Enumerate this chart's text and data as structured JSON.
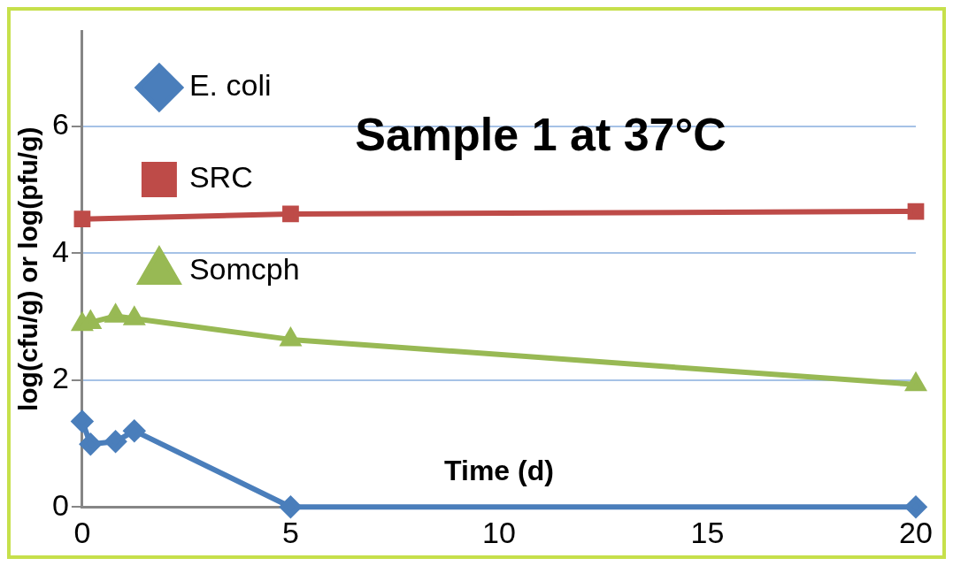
{
  "chart_data": {
    "type": "line",
    "title": "Sample 1 at 37°C",
    "xlabel": "Time (d)",
    "ylabel": "log(cfu/g) or log(pfu/g)",
    "series": [
      {
        "name": "E. coli",
        "color": "#4a7ebb",
        "marker": "diamond",
        "x": [
          0,
          0.2,
          0.8,
          1.25,
          5,
          20
        ],
        "values": [
          1.35,
          0.99,
          1.03,
          1.2,
          0,
          0
        ]
      },
      {
        "name": "SRC",
        "color": "#be4b48",
        "marker": "square",
        "x": [
          0,
          5,
          20
        ],
        "values": [
          4.54,
          4.62,
          4.66
        ]
      },
      {
        "name": "Somcph",
        "color": "#98b954",
        "marker": "triangle",
        "x": [
          0,
          0.2,
          0.8,
          1.25,
          5,
          20
        ],
        "values": [
          2.88,
          2.91,
          3.01,
          2.97,
          2.64,
          1.93
        ]
      }
    ],
    "xlim": [
      0,
      20
    ],
    "xticks": [
      0,
      5,
      10,
      15,
      20
    ],
    "ylim": [
      0,
      7.5
    ],
    "yticks": [
      0,
      2,
      4,
      6
    ],
    "grid": "y",
    "legend": "top"
  }
}
